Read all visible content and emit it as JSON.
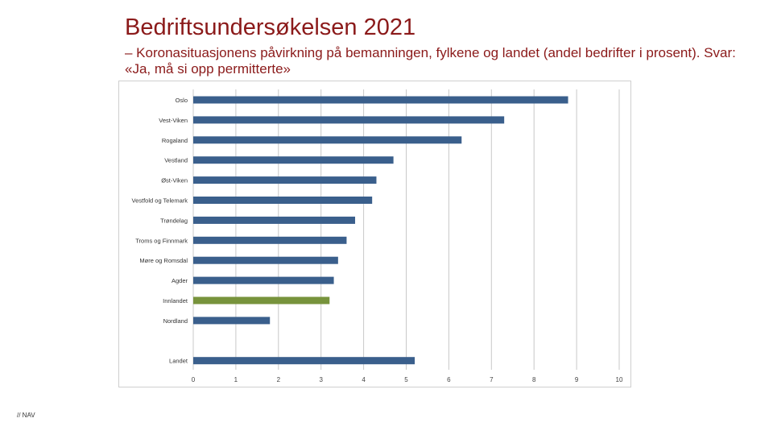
{
  "slide": {
    "title": "Bedriftsundersøkelsen 2021",
    "subtitle": "– Koronasituasjonens påvirkning på bemanningen, fylkene og landet (andel bedrifter i prosent). Svar: «Ja, må si opp permitterte»",
    "footer": "// NAV"
  },
  "colors": {
    "bar": "#3a5f8c",
    "highlight": "#77933c",
    "grid": "#c8c8c8",
    "title": "#8b1a1a"
  },
  "chart_data": {
    "type": "bar",
    "orientation": "horizontal",
    "title": "",
    "xlabel": "",
    "ylabel": "",
    "xlim": [
      0,
      10
    ],
    "xticks": [
      "0",
      "1",
      "2",
      "3",
      "4",
      "5",
      "6",
      "7",
      "8",
      "9",
      "10"
    ],
    "grid": true,
    "categories": [
      "Oslo",
      "Vest-Viken",
      "Rogaland",
      "Vestland",
      "Øst-Viken",
      "Vestfold og Telemark",
      "Trøndelag",
      "Troms og Finnmark",
      "Møre og Romsdal",
      "Agder",
      "Innlandet",
      "Nordland",
      "",
      "Landet"
    ],
    "values": [
      8.8,
      7.3,
      6.3,
      4.7,
      4.3,
      4.2,
      3.8,
      3.6,
      3.4,
      3.3,
      3.2,
      1.8,
      null,
      5.2
    ],
    "highlight_category": "Innlandet"
  }
}
